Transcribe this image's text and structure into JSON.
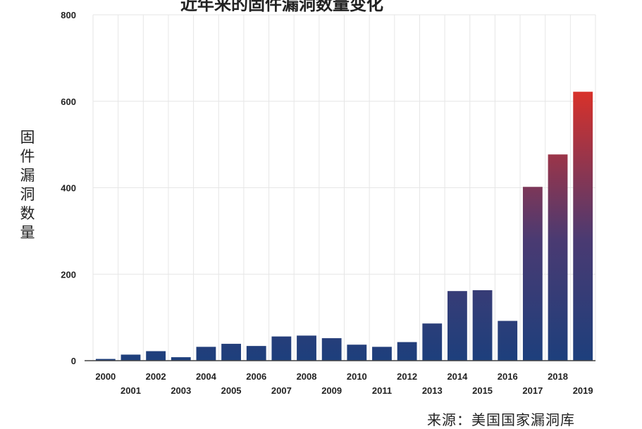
{
  "chart_data": {
    "type": "bar",
    "title": "近年来的固件漏洞数量变化",
    "ylabel": "固件漏洞数量",
    "xlabel": "",
    "source": "来源：美国国家漏洞库",
    "categories": [
      "2000",
      "2001",
      "2002",
      "2003",
      "2004",
      "2005",
      "2006",
      "2007",
      "2008",
      "2009",
      "2010",
      "2011",
      "2012",
      "2013",
      "2014",
      "2015",
      "2016",
      "2017",
      "2018",
      "2019"
    ],
    "values": [
      4,
      14,
      22,
      8,
      32,
      39,
      34,
      56,
      58,
      52,
      37,
      32,
      43,
      86,
      161,
      163,
      92,
      402,
      477,
      622
    ],
    "ylim": [
      0,
      800
    ],
    "yticks": [
      0,
      200,
      400,
      600,
      800
    ],
    "grid": true,
    "legend": "none",
    "colors": {
      "low": "#1d3f7c",
      "high": "#d8312a",
      "grid": "#e6e6e6",
      "axis": "#444444"
    }
  }
}
